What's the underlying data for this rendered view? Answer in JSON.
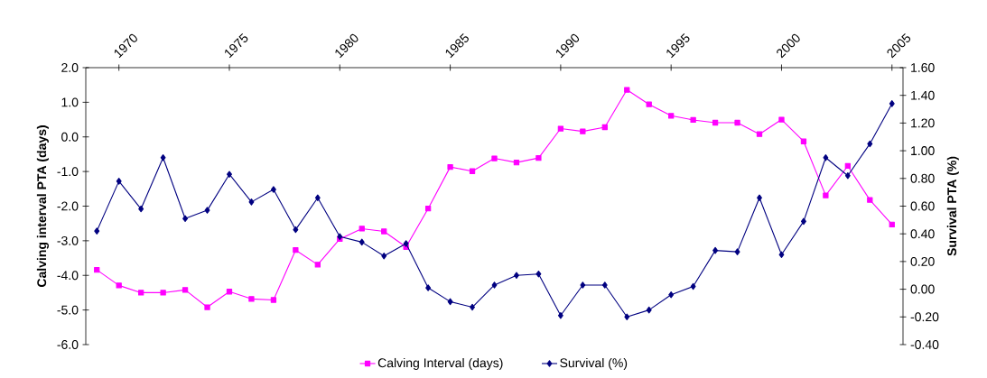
{
  "chart_data": {
    "type": "line",
    "ylabel": "Calving interval PTA (days)",
    "y2label": "Survival PTA (%)",
    "x": [
      1969,
      1970,
      1971,
      1972,
      1973,
      1974,
      1975,
      1976,
      1977,
      1978,
      1979,
      1980,
      1981,
      1982,
      1983,
      1984,
      1985,
      1986,
      1987,
      1988,
      1989,
      1990,
      1991,
      1992,
      1993,
      1994,
      1995,
      1996,
      1997,
      1998,
      1999,
      2000,
      2001,
      2002,
      2003,
      2004,
      2005
    ],
    "xlim": [
      1968.5,
      2005.5
    ],
    "xticks": [
      1970,
      1975,
      1980,
      1985,
      1990,
      1995,
      2000,
      2005
    ],
    "ylim": [
      -6,
      2
    ],
    "yticks": [
      {
        "value": -6,
        "label": "-6.0"
      },
      {
        "value": -5,
        "label": "-5.0"
      },
      {
        "value": -4,
        "label": "-4.0"
      },
      {
        "value": -3,
        "label": "-3.0"
      },
      {
        "value": -2,
        "label": "-2.0"
      },
      {
        "value": -1,
        "label": "-1.0"
      },
      {
        "value": 0,
        "label": "0.0"
      },
      {
        "value": 1,
        "label": "1.0"
      },
      {
        "value": 2,
        "label": "2.0"
      }
    ],
    "y2lim": [
      -0.4,
      1.6
    ],
    "y2ticks": [
      {
        "value": -0.4,
        "label": "-0.40"
      },
      {
        "value": -0.2,
        "label": "-0.20"
      },
      {
        "value": 0,
        "label": "0.00"
      },
      {
        "value": 0.2,
        "label": "0.20"
      },
      {
        "value": 0.4,
        "label": "0.40"
      },
      {
        "value": 0.6,
        "label": "0.60"
      },
      {
        "value": 0.8,
        "label": "0.80"
      },
      {
        "value": 1.0,
        "label": "1.00"
      },
      {
        "value": 1.2,
        "label": "1.20"
      },
      {
        "value": 1.4,
        "label": "1.40"
      },
      {
        "value": 1.6,
        "label": "1.60"
      }
    ],
    "legend": "bottom",
    "series": [
      {
        "name": "Calving Interval (days)",
        "color": "#ff00ff",
        "marker": "square",
        "values": [
          -3.84,
          -4.29,
          -4.5,
          -4.5,
          -4.42,
          -4.92,
          -4.47,
          -4.68,
          -4.71,
          -3.27,
          -3.69,
          -2.95,
          -2.65,
          -2.73,
          -3.18,
          -2.07,
          -0.87,
          -0.99,
          -0.62,
          -0.74,
          -0.61,
          0.24,
          0.16,
          0.28,
          1.36,
          0.94,
          0.61,
          0.49,
          0.41,
          0.41,
          0.08,
          0.5,
          -0.13,
          -1.69,
          -0.84,
          -1.82,
          -2.53
        ]
      },
      {
        "name": "Survival (%)",
        "color": "#000080",
        "marker": "diamond",
        "axis": "y2",
        "values": [
          0.42,
          0.78,
          0.58,
          0.95,
          0.51,
          0.57,
          0.83,
          0.63,
          0.72,
          0.43,
          0.66,
          0.38,
          0.34,
          0.24,
          0.33,
          0.01,
          -0.09,
          -0.13,
          0.03,
          0.1,
          0.11,
          -0.19,
          0.03,
          0.03,
          -0.2,
          -0.15,
          -0.04,
          0.02,
          0.28,
          0.27,
          0.66,
          0.25,
          0.49,
          0.95,
          0.82,
          1.05,
          1.34
        ]
      }
    ]
  }
}
